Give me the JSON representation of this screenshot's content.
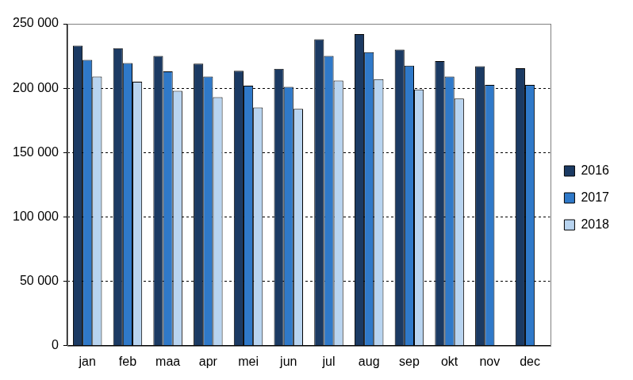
{
  "chart_data": {
    "type": "bar",
    "categories": [
      "jan",
      "feb",
      "maa",
      "apr",
      "mei",
      "jun",
      "jul",
      "aug",
      "sep",
      "okt",
      "nov",
      "dec"
    ],
    "series": [
      {
        "name": "2016",
        "color": "#1b3a63",
        "values": [
          233000,
          231000,
          225000,
          219000,
          213500,
          215000,
          238000,
          242000,
          230000,
          221000,
          217000,
          215500
        ]
      },
      {
        "name": "2017",
        "color": "#2f79c9",
        "values": [
          222000,
          219500,
          213000,
          209000,
          202000,
          201000,
          225000,
          228000,
          217500,
          209000,
          202500,
          202500
        ]
      },
      {
        "name": "2018",
        "color": "#b8d4f0",
        "values": [
          209000,
          205000,
          198000,
          193000,
          185000,
          184000,
          206000,
          207000,
          199000,
          192000,
          null,
          null
        ]
      }
    ],
    "ylim": [
      0,
      250000
    ],
    "yticks": [
      0,
      {
        "value": 50000,
        "label": "50 000"
      },
      {
        "value": 100000,
        "label": "100 000"
      },
      {
        "value": 150000,
        "label": "150 000"
      },
      {
        "value": 200000,
        "label": "200 000"
      },
      {
        "value": 250000,
        "label": "250 000"
      }
    ],
    "grid": true,
    "legend": "right"
  }
}
